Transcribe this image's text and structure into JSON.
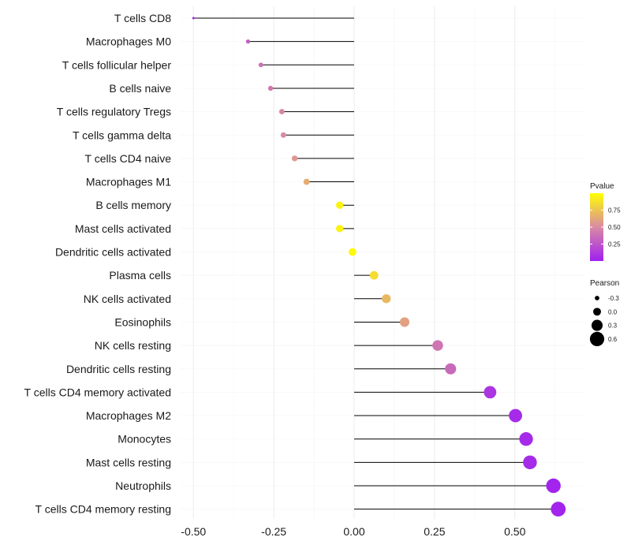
{
  "chart_data": {
    "type": "lollipop",
    "title": "",
    "xlabel": "",
    "ylabel": "",
    "xlim": [
      -0.5,
      0.65
    ],
    "x_ticks": [
      "-0.50",
      "-0.25",
      "0.00",
      "0.25",
      "0.50"
    ],
    "x_tick_values": [
      -0.5,
      -0.25,
      0,
      0.25,
      0.5
    ],
    "categories": [
      "T cells CD8",
      "Macrophages M0",
      "T cells follicular helper",
      "B cells naive",
      "T cells regulatory  Tregs",
      "T cells gamma delta",
      "T cells CD4 naive",
      "Macrophages M1",
      "B cells memory",
      "Mast cells activated",
      "Dendritic cells activated",
      "Plasma cells",
      "NK cells activated",
      "Eosinophils",
      "NK cells resting",
      "Dendritic cells resting",
      "T cells CD4 memory activated",
      "Macrophages M2",
      "Monocytes",
      "Mast cells resting",
      "Neutrophils",
      "T cells CD4 memory resting"
    ],
    "pearson": [
      -0.5,
      -0.33,
      -0.29,
      -0.26,
      -0.225,
      -0.22,
      -0.185,
      -0.148,
      -0.045,
      -0.045,
      -0.005,
      0.062,
      0.1,
      0.157,
      0.26,
      0.3,
      0.423,
      0.502,
      0.535,
      0.547,
      0.62,
      0.635
    ],
    "pvalue": [
      0.02,
      0.3,
      0.38,
      0.42,
      0.48,
      0.5,
      0.55,
      0.65,
      0.95,
      0.95,
      0.98,
      0.85,
      0.7,
      0.6,
      0.4,
      0.35,
      0.1,
      0.05,
      0.05,
      0.05,
      0.02,
      0.02
    ],
    "color_legend": {
      "title": "Pvalue",
      "labels": [
        "0.75",
        "0.50",
        "0.25"
      ],
      "values": [
        0.75,
        0.5,
        0.25
      ],
      "range": [
        0,
        1
      ],
      "low_color": "#a020f0",
      "mid_color": "#d98aa3",
      "high_color": "#ffff00"
    },
    "size_legend": {
      "title": "Pearson",
      "labels": [
        "-0.3",
        "0.0",
        "0.3",
        "0.6"
      ],
      "values": [
        -0.3,
        0.0,
        0.3,
        0.6
      ]
    },
    "segment_color": "#000000",
    "grid": true
  }
}
